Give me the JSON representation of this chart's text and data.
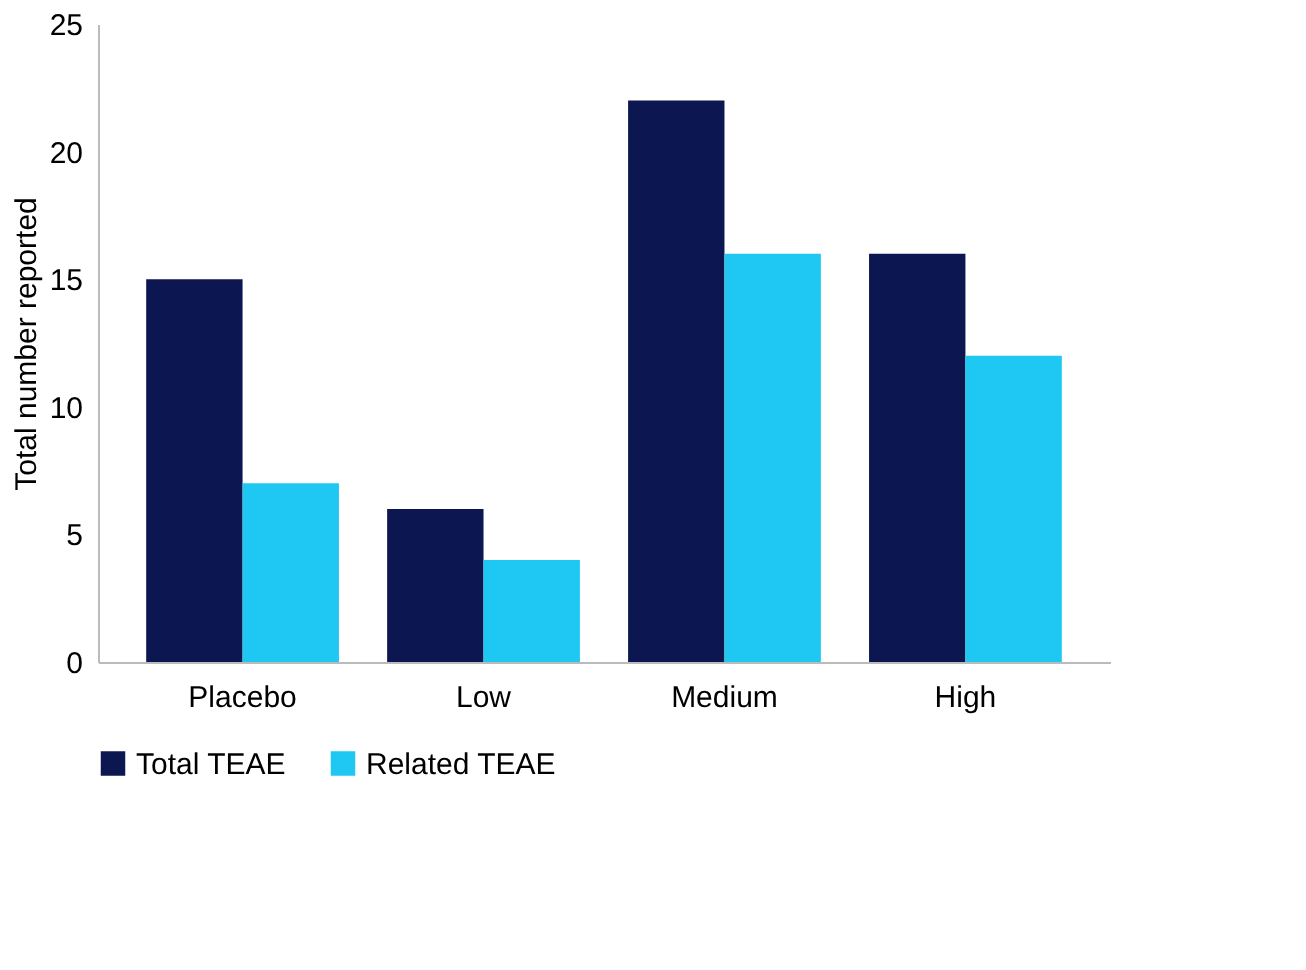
{
  "chart_data": {
    "type": "bar",
    "ylabel": "Total number reported",
    "categories": [
      "Placebo",
      "Low",
      "Medium",
      "High"
    ],
    "series": [
      {
        "name": "Total TEAE",
        "color": "#0c1650",
        "values": [
          15,
          6,
          22,
          16
        ]
      },
      {
        "name": "Related TEAE",
        "color": "#1fc8f2",
        "values": [
          7,
          4,
          16,
          12
        ]
      }
    ],
    "ylim": [
      0,
      25
    ],
    "yticks": [
      0,
      5,
      10,
      15,
      20,
      25
    ],
    "grid": false,
    "legend": "bottom"
  }
}
